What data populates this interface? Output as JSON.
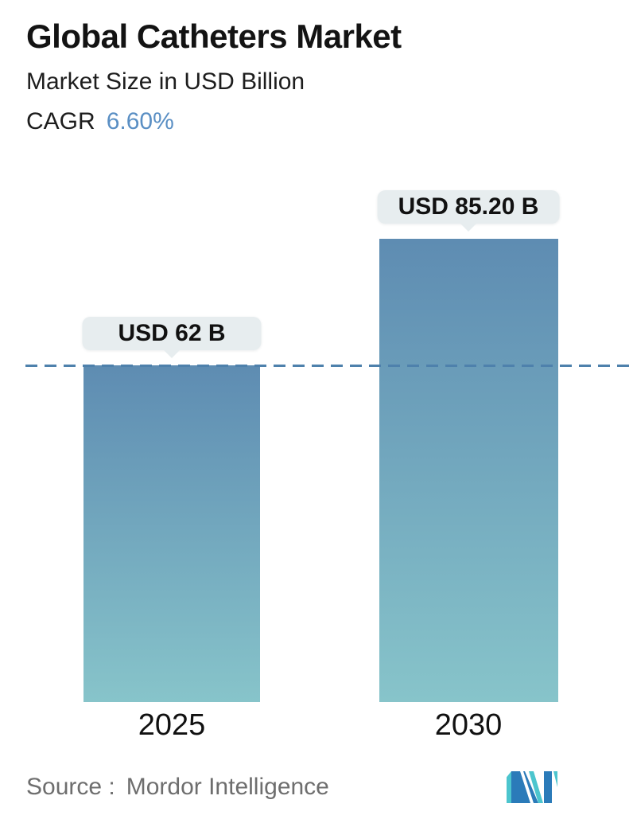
{
  "header": {
    "title": "Global Catheters Market",
    "subtitle": "Market Size in USD Billion",
    "cagr_label": "CAGR",
    "cagr_value": "6.60%"
  },
  "chart_data": {
    "type": "bar",
    "title": "Global Catheters Market",
    "unit": "USD Billion",
    "categories": [
      "2025",
      "2030"
    ],
    "values": [
      62,
      85.2
    ],
    "value_labels": [
      "USD 62 B",
      "USD 85.20 B"
    ],
    "cagr_percent": 6.6,
    "baseline": {
      "value": 62,
      "style": "dashed-horizontal"
    },
    "ylim": [
      0,
      85.2
    ],
    "grid": "off",
    "legend": "none",
    "bar_fill": "vertical gradient steel-blue to teal"
  },
  "footer": {
    "source_label": "Source :",
    "source_name": "Mordor Intelligence",
    "logo": "mordor-intelligence-logo"
  },
  "colors": {
    "cagr_value": "#5a8fc4",
    "bar_top": "#5e8cb2",
    "bar_bottom": "#87c4ca",
    "baseline_dash": "#4e81ac",
    "tooltip_bg": "#e7edef",
    "year_label": "#111111",
    "source_text": "#6e6e6e",
    "logo_blue": "#2b7bb9",
    "logo_teal": "#4cc5ce"
  }
}
